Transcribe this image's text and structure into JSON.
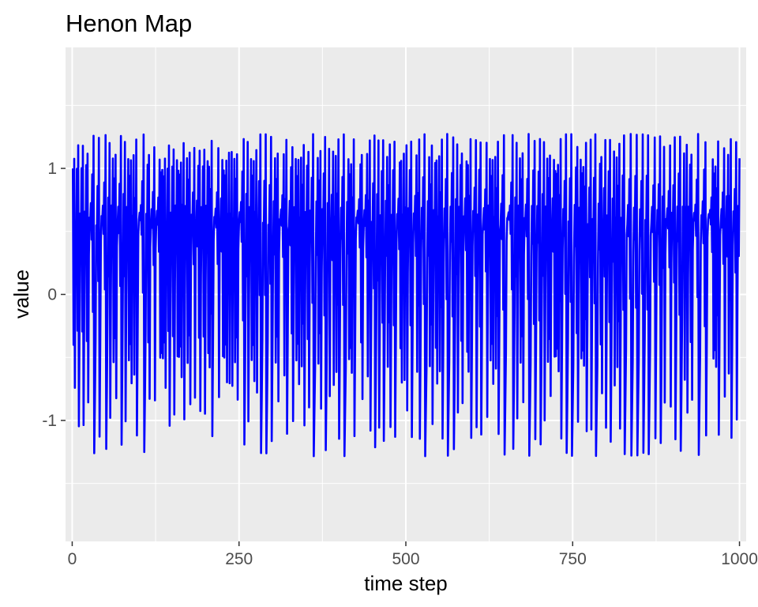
{
  "chart_data": {
    "type": "line",
    "title": "Henon Map",
    "xlabel": "time step",
    "ylabel": "value",
    "xlim": [
      -10,
      1010
    ],
    "ylim": [
      -1.96,
      1.96
    ],
    "x_ticks": [
      0,
      250,
      500,
      750,
      1000
    ],
    "x_tick_labels": [
      "0",
      "250",
      "500",
      "750",
      "1000"
    ],
    "y_ticks": [
      -1,
      0,
      1
    ],
    "y_tick_labels": [
      "-1",
      "0",
      "1"
    ],
    "grid": true,
    "legend": "none",
    "series": [
      {
        "color": "#0000ff",
        "map": "henon",
        "a": 1.4,
        "b": 0.3,
        "x0": 0.0,
        "y0": 0.0,
        "t_start": 1,
        "t_end": 1000,
        "plotted": "x"
      }
    ]
  },
  "colors": {
    "panel_background": "#ebebeb",
    "grid_major": "#ffffff",
    "tick_text": "#4d4d4d",
    "line": "#0000ff"
  }
}
